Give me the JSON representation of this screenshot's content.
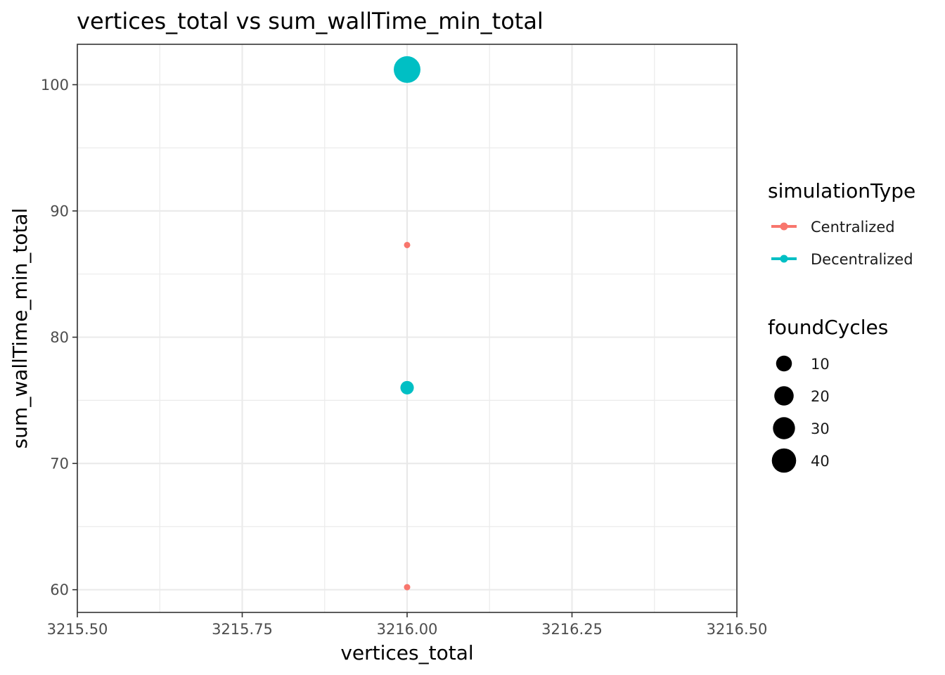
{
  "chart_data": {
    "type": "scatter",
    "title": "vertices_total  vs  sum_wallTime_min_total",
    "xlabel": "vertices_total",
    "ylabel": "sum_wallTime_min_total",
    "xlim": [
      3215.5,
      3216.5
    ],
    "ylim": [
      58.2,
      103.2
    ],
    "x_ticks": [
      3215.5,
      3215.75,
      3216.0,
      3216.25,
      3216.5
    ],
    "x_tick_labels": [
      "3215.50",
      "3215.75",
      "3216.00",
      "3216.25",
      "3216.50"
    ],
    "y_ticks": [
      60,
      70,
      80,
      90,
      100
    ],
    "y_tick_labels": [
      "60",
      "70",
      "80",
      "90",
      "100"
    ],
    "grid": true,
    "color_legend": {
      "title": "simulationType",
      "entries": [
        {
          "label": "Centralized",
          "color": "#F8766D"
        },
        {
          "label": "Decentralized",
          "color": "#00BFC4"
        }
      ]
    },
    "size_legend": {
      "title": "foundCycles",
      "values": [
        10,
        20,
        30,
        40
      ],
      "labels": [
        "10",
        "20",
        "30",
        "40"
      ]
    },
    "series": [
      {
        "name": "Centralized",
        "color": "#F8766D",
        "points": [
          {
            "x": 3216.0,
            "y": 87.3,
            "size": 1
          },
          {
            "x": 3216.0,
            "y": 60.2,
            "size": 1
          }
        ]
      },
      {
        "name": "Decentralized",
        "color": "#00BFC4",
        "points": [
          {
            "x": 3216.0,
            "y": 101.2,
            "size": 42
          },
          {
            "x": 3216.0,
            "y": 76.0,
            "size": 6
          }
        ]
      }
    ],
    "line": {
      "x": 3216.0,
      "y_from": 60.2,
      "y_to": 101.2
    }
  }
}
